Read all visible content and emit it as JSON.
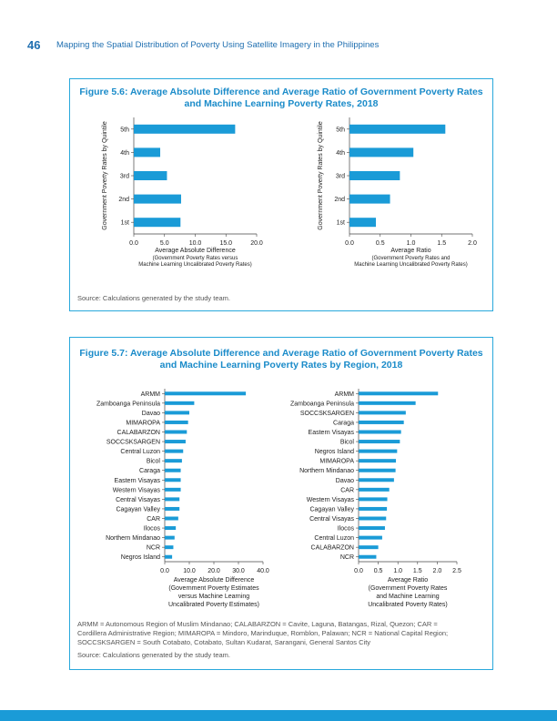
{
  "header": {
    "page_number": "46",
    "running_head": "Mapping the Spatial Distribution of Poverty Using Satellite Imagery in the Philippines"
  },
  "fig1": {
    "title_line1": "Figure 5.6:  Average Absolute Difference and Average Ratio of Government Poverty Rates",
    "title_line2": "and Machine Learning Poverty Rates, 2018",
    "source": "Source: Calculations generated by the study team."
  },
  "fig2": {
    "title_line1": "Figure 5.7:  Average Absolute Difference and Average Ratio of Government Poverty Rates",
    "title_line2": "and Machine Learning Poverty Rates by Region, 2018",
    "abbreviations": [
      "ARMM = Autonomous Region of Muslim Mindanao; CALABARZON = Cavite, Laguna, Batangas, Rizal, Quezon; CAR =",
      "Cordillera Administrative Region; MIMAROPA = Mindoro, Marinduque, Romblon, Palawan; NCR = National Capital Region;",
      "SOCCSKSARGEN = South Cotabato, Cotabato, Sultan Kudarat, Sarangani, General Santos City"
    ],
    "source": "Source: Calculations generated by the study team."
  },
  "chart_data": [
    {
      "type": "bar",
      "orientation": "horizontal",
      "categories": [
        "5th",
        "4th",
        "3rd",
        "2nd",
        "1st"
      ],
      "values": [
        16.5,
        4.3,
        5.4,
        7.7,
        7.6
      ],
      "xlim": [
        0,
        20
      ],
      "xticks": [
        "0.0",
        "5.0",
        "10.0",
        "15.0",
        "20.0"
      ],
      "ylabel": "Government Poverty Rates by Quintile",
      "xlabel": [
        "Average Absolute Difference"
      ],
      "xlabel_sub": [
        "(Government Poverty Rates versus",
        "Machine Learning Uncalibrated Poverty Rates)"
      ],
      "color": "#1a9bd7"
    },
    {
      "type": "bar",
      "orientation": "horizontal",
      "categories": [
        "5th",
        "4th",
        "3rd",
        "2nd",
        "1st"
      ],
      "values": [
        1.56,
        1.04,
        0.82,
        0.66,
        0.43
      ],
      "xlim": [
        0,
        2
      ],
      "xticks": [
        "0.0",
        "0.5",
        "1.0",
        "1.5",
        "2.0"
      ],
      "ylabel": "Government Poverty Rates by Quintile",
      "xlabel": [
        "Average Ratio"
      ],
      "xlabel_sub": [
        "(Government Poverty Rates and",
        "Machine Learning Uncalibrated Poverty Rates)"
      ],
      "color": "#1a9bd7"
    },
    {
      "type": "bar",
      "orientation": "horizontal",
      "categories": [
        "ARMM",
        "Zamboanga Peninsula",
        "Davao",
        "MIMAROPA",
        "CALABARZON",
        "SOCCSKSARGEN",
        "Central Luzon",
        "Bicol",
        "Caraga",
        "Eastern Visayas",
        "Western Visayas",
        "Central Visayas",
        "Cagayan Valley",
        "CAR",
        "Ilocos",
        "Northern Mindanao",
        "NCR",
        "Negros Island"
      ],
      "values": [
        33.0,
        12.0,
        10.0,
        9.5,
        9.0,
        8.5,
        7.5,
        7.0,
        6.5,
        6.5,
        6.5,
        6.0,
        6.0,
        5.5,
        4.5,
        4.0,
        3.5,
        3.0
      ],
      "xlim": [
        0,
        40
      ],
      "xticks": [
        "0.0",
        "10.0",
        "20.0",
        "30.0",
        "40.0"
      ],
      "xlabel": [
        "Average Absolute Difference",
        "(Government Poverty Estimates",
        "versus Machine Learning",
        "Uncalibrated Poverty Estimates)"
      ],
      "color": "#1a9bd7"
    },
    {
      "type": "bar",
      "orientation": "horizontal",
      "categories": [
        "ARMM",
        "Zamboanga Peninsula",
        "SOCCSKSARGEN",
        "Caraga",
        "Eastern Visayas",
        "Bicol",
        "Negros Island",
        "MIMAROPA",
        "Northern Mindanao",
        "Davao",
        "CAR",
        "Western Visayas",
        "Cagayan Valley",
        "Central Visayas",
        "Ilocos",
        "Central Luzon",
        "CALABARZON",
        "NCR"
      ],
      "values": [
        2.02,
        1.45,
        1.2,
        1.15,
        1.08,
        1.05,
        0.98,
        0.95,
        0.94,
        0.9,
        0.78,
        0.73,
        0.72,
        0.7,
        0.67,
        0.6,
        0.5,
        0.45
      ],
      "xlim": [
        0,
        2.5
      ],
      "xticks": [
        "0.0",
        "0.5",
        "1.0",
        "1.5",
        "2.0",
        "2.5"
      ],
      "xlabel": [
        "Average Ratio",
        "(Government Poverty Rates",
        "and Machine Learning",
        "Uncalibrated Poverty Rates)"
      ],
      "color": "#1a9bd7"
    }
  ]
}
